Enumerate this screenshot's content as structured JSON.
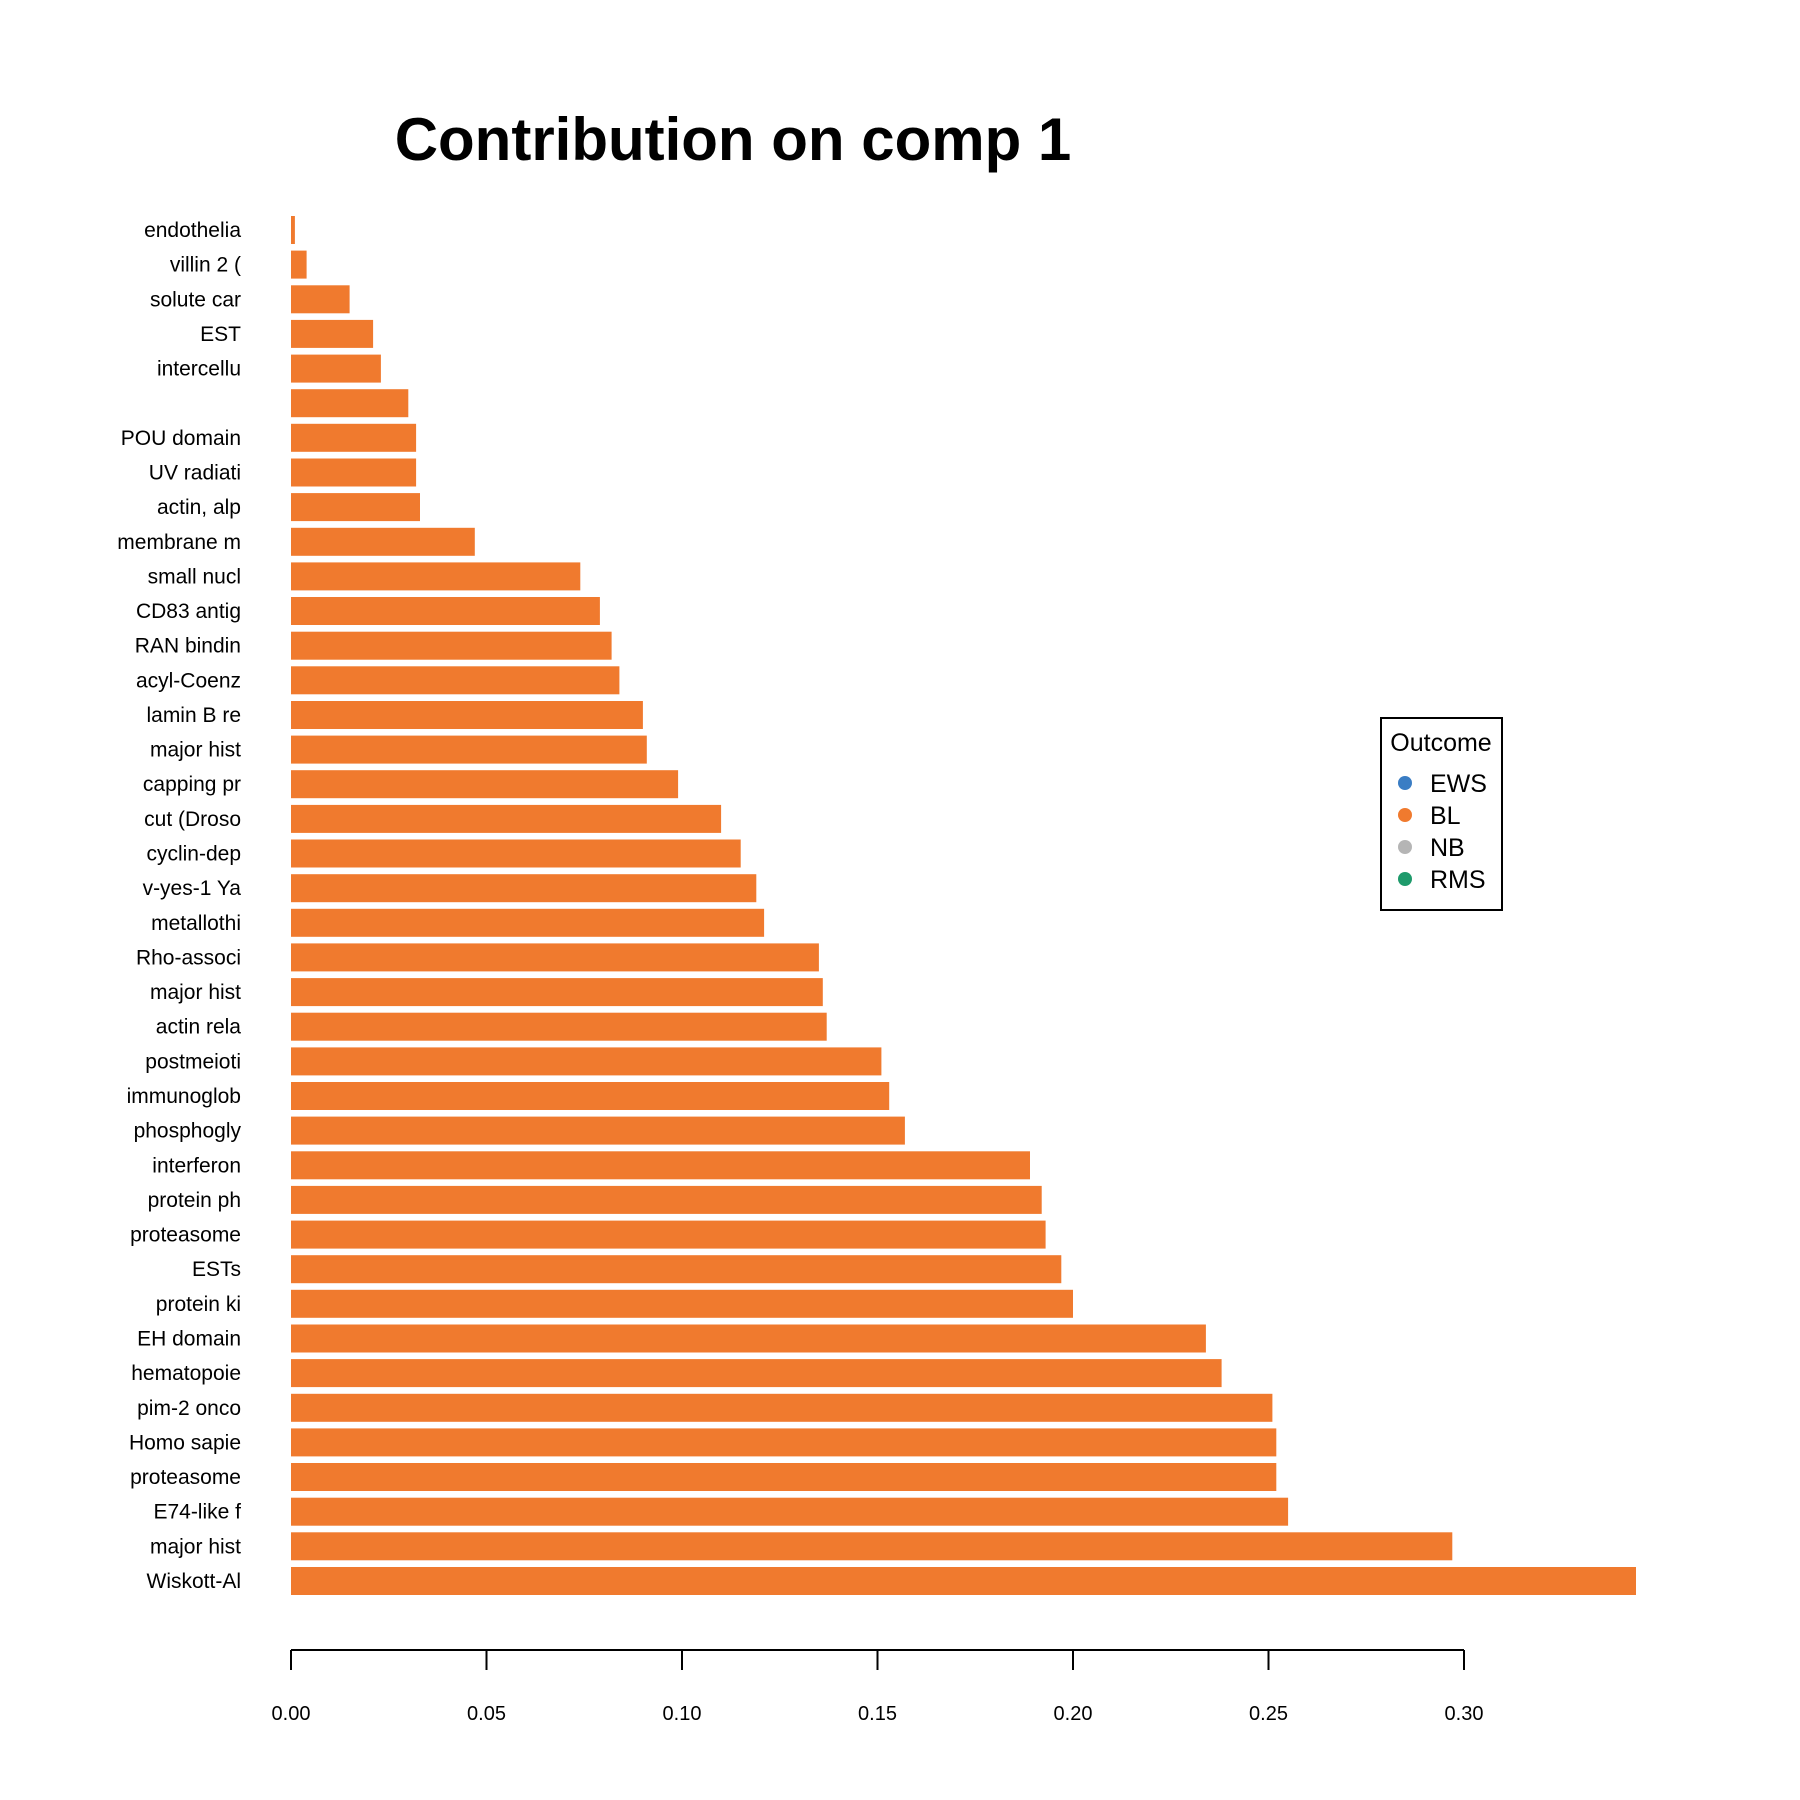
{
  "chart_data": {
    "type": "bar",
    "orientation": "horizontal",
    "title": "Contribution on comp 1",
    "xlabel": "",
    "ylabel": "",
    "xlim": [
      0,
      0.35
    ],
    "x_ticks": [
      "0.00",
      "0.05",
      "0.10",
      "0.15",
      "0.20",
      "0.25",
      "0.30"
    ],
    "grid": false,
    "bar_color": "#F07A2E",
    "categories": [
      "endothelia",
      "villin 2 (",
      "solute car",
      "EST",
      "intercellu",
      "",
      "POU domain",
      "UV radiati",
      "actin, alp",
      "membrane m",
      "small nucl",
      "CD83 antig",
      "RAN bindin",
      "acyl-Coenz",
      "lamin B re",
      "major hist",
      "capping pr",
      "cut (Droso",
      "cyclin-dep",
      "v-yes-1 Ya",
      "metallothi",
      "Rho-associ",
      "major hist",
      "actin rela",
      "postmeioti",
      "immunoglob",
      "phosphogly",
      "interferon",
      "protein ph",
      "proteasome",
      "ESTs",
      "protein ki",
      "EH domain ",
      "hematopoie",
      "pim-2 onco",
      "Homo sapie",
      "proteasome",
      "E74-like f",
      "major hist",
      "Wiskott-Al"
    ],
    "values": [
      0.001,
      0.004,
      0.015,
      0.021,
      0.023,
      0.03,
      0.032,
      0.032,
      0.033,
      0.047,
      0.074,
      0.079,
      0.082,
      0.084,
      0.09,
      0.091,
      0.099,
      0.11,
      0.115,
      0.119,
      0.121,
      0.135,
      0.136,
      0.137,
      0.151,
      0.153,
      0.157,
      0.189,
      0.192,
      0.193,
      0.197,
      0.2,
      0.234,
      0.238,
      0.251,
      0.252,
      0.252,
      0.255,
      0.297,
      0.344
    ],
    "legend": {
      "title": "Outcome",
      "placement": "right",
      "entries": [
        {
          "label": "EWS",
          "color": "#3A7DC4"
        },
        {
          "label": "BL",
          "color": "#F07A2E"
        },
        {
          "label": "NB",
          "color": "#B5B5B5"
        },
        {
          "label": "RMS",
          "color": "#1E9A6B"
        }
      ]
    }
  }
}
